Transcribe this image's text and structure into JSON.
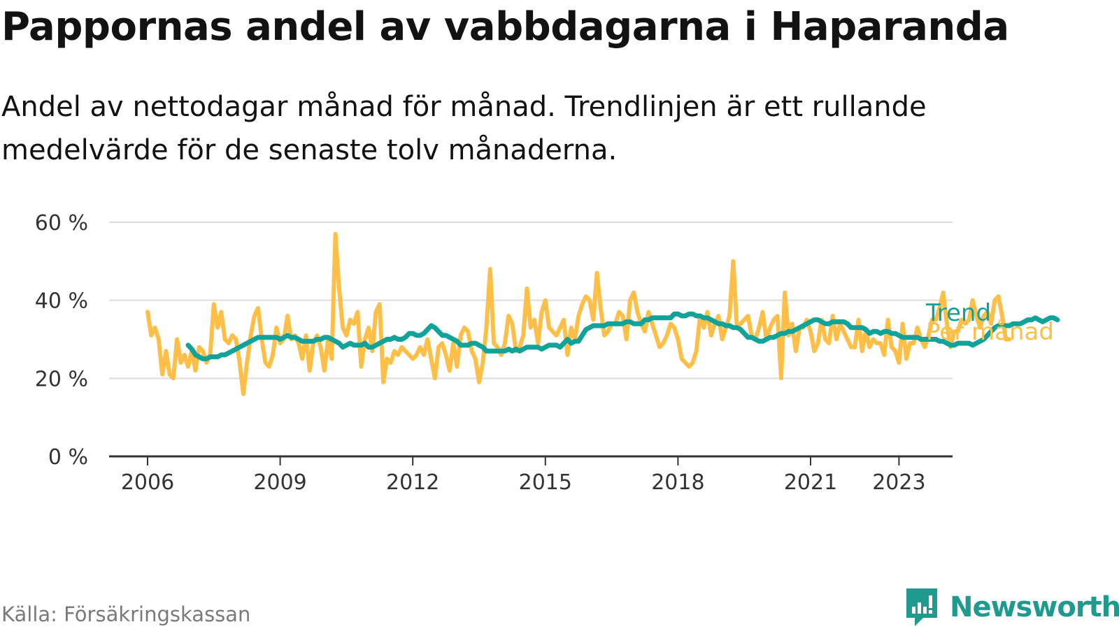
{
  "title": "Pappornas andel av vabbdagarna i Haparanda",
  "subtitle": "Andel av nettodagar månad för månad. Trendlinjen är ett rullande medelvärde för de senaste tolv månaderna.",
  "source": "Källa: Försäkringskassan",
  "brand": "Newsworthy",
  "colors": {
    "monthly": "#ffbf47",
    "trend": "#11a39a",
    "grid": "#dcdcdc",
    "axis": "#333333",
    "brand": "#1e9a8e"
  },
  "chart_data": {
    "type": "line",
    "title": "Pappornas andel av vabbdagarna i Haparanda",
    "xlabel": "",
    "ylabel": "",
    "x_unit": "year",
    "x_start": 2006.0,
    "x_step_months": 1,
    "xlim": [
      2005.3,
      2024.2
    ],
    "ylim": [
      0,
      60
    ],
    "y_ticks": [
      0,
      20,
      40,
      60
    ],
    "y_tick_labels": [
      "0 %",
      "20 %",
      "40 %",
      "60 %"
    ],
    "x_ticks": [
      2006,
      2009,
      2012,
      2015,
      2018,
      2021,
      2023
    ],
    "x_tick_labels": [
      "2006",
      "2009",
      "2012",
      "2015",
      "2018",
      "2021",
      "2023"
    ],
    "grid": true,
    "legend": "inline-end",
    "series": [
      {
        "name": "Per månad",
        "x_start": 2006.0,
        "values": [
          37,
          31,
          33,
          30,
          21,
          27,
          21,
          20,
          30,
          24,
          26,
          23,
          27,
          22,
          28,
          27,
          24,
          26,
          39,
          33,
          37,
          30,
          29,
          31,
          30,
          24,
          16,
          24,
          31,
          36,
          38,
          30,
          24,
          23,
          26,
          33,
          29,
          30,
          36,
          30,
          31,
          29,
          25,
          31,
          22,
          29,
          31,
          28,
          22,
          30,
          25,
          57,
          43,
          33,
          31,
          35,
          34,
          37,
          23,
          30,
          33,
          27,
          37,
          39,
          19,
          25,
          24,
          27,
          26,
          28,
          27,
          26,
          25,
          26,
          28,
          26,
          30,
          25,
          20,
          28,
          29,
          26,
          22,
          29,
          23,
          31,
          33,
          32,
          27,
          25,
          19,
          24,
          33,
          48,
          29,
          28,
          26,
          29,
          36,
          34,
          27,
          28,
          31,
          43,
          33,
          35,
          29,
          37,
          40,
          33,
          32,
          31,
          33,
          35,
          26,
          33,
          30,
          36,
          39,
          41,
          40,
          35,
          47,
          38,
          31,
          32,
          34,
          34,
          37,
          36,
          30,
          40,
          42,
          37,
          34,
          32,
          37,
          34,
          31,
          28,
          29,
          31,
          34,
          33,
          30,
          25,
          24,
          23,
          24,
          27,
          36,
          33,
          37,
          31,
          34,
          36,
          30,
          33,
          36,
          50,
          33,
          34,
          35,
          36,
          31,
          30,
          33,
          37,
          30,
          33,
          35,
          36,
          20,
          42,
          31,
          34,
          27,
          33,
          33,
          35,
          32,
          27,
          29,
          35,
          30,
          29,
          36,
          30,
          34,
          32,
          30,
          28,
          28,
          35,
          27,
          32,
          28,
          30,
          29,
          29,
          26,
          35,
          28,
          27,
          24,
          34,
          25,
          29,
          29,
          33,
          30,
          28,
          31,
          35,
          35,
          38,
          42,
          34,
          28,
          32,
          32,
          35,
          34,
          35,
          40,
          36,
          33,
          36,
          37,
          34,
          40,
          41,
          36,
          30,
          30
        ]
      },
      {
        "name": "Trend",
        "x_start": 2006.917,
        "values": [
          28.5,
          27.5,
          26,
          25.5,
          25,
          25,
          25.5,
          25.5,
          25.5,
          26,
          26,
          26.5,
          27,
          27.5,
          28,
          28.5,
          29,
          29.5,
          30,
          30.5,
          30.5,
          30.5,
          30.5,
          30.5,
          30.5,
          30,
          30.5,
          31,
          30.5,
          30.5,
          30,
          29.5,
          29.5,
          29.5,
          29.5,
          30,
          30,
          30.5,
          30.5,
          30,
          29.5,
          29,
          28,
          28.5,
          29,
          28.5,
          28.5,
          28.5,
          29,
          28,
          28,
          28.5,
          29,
          29.5,
          30,
          30,
          30.5,
          30,
          30,
          30.5,
          31.5,
          31.5,
          31,
          31,
          31.5,
          32.5,
          33.5,
          33,
          32,
          31,
          31,
          30.5,
          30,
          29.5,
          28.5,
          28.5,
          28.5,
          29,
          29,
          28.5,
          28,
          27,
          27,
          27,
          27,
          27,
          27,
          27.5,
          27,
          27.5,
          27,
          27.5,
          28,
          28,
          28,
          28,
          27.5,
          28,
          28.5,
          28.5,
          28.5,
          28,
          29,
          30,
          29,
          29.5,
          29.5,
          31,
          32.5,
          33,
          33.5,
          33.5,
          33.5,
          33.5,
          34,
          34,
          34,
          34,
          34,
          34.5,
          34.5,
          34,
          34,
          34,
          35,
          35,
          35.5,
          35.5,
          35.5,
          35.5,
          35.5,
          35.5,
          36.5,
          36.5,
          36,
          36,
          36.5,
          36.5,
          36,
          36,
          35.5,
          35.5,
          35,
          34.5,
          34,
          34,
          33.5,
          33.5,
          33,
          33,
          32.5,
          31.5,
          30.5,
          30.5,
          30,
          29.5,
          29.5,
          30,
          30.5,
          30.5,
          31,
          31.5,
          31.5,
          32,
          32,
          32.5,
          33,
          33.5,
          34,
          34.5,
          35,
          35,
          34.5,
          34,
          34,
          34.5,
          34.5,
          34.5,
          34.5,
          34,
          33,
          33,
          33,
          33,
          32.5,
          31.5,
          32,
          32,
          31.5,
          32,
          32,
          31.5,
          31.5,
          31,
          30.5,
          30.5,
          30.5,
          30.5,
          30.5,
          30,
          30,
          30,
          30,
          30,
          29.5,
          29.5,
          29,
          28.5,
          28.5,
          29,
          29,
          29,
          29,
          28.5,
          29,
          29.5,
          30,
          31,
          32,
          33,
          33.5,
          33.5,
          33.5,
          33.5,
          34,
          34,
          34,
          34.5,
          35,
          35,
          35.5,
          35,
          34.5,
          35,
          35.5,
          35.5,
          35
        ]
      }
    ]
  }
}
